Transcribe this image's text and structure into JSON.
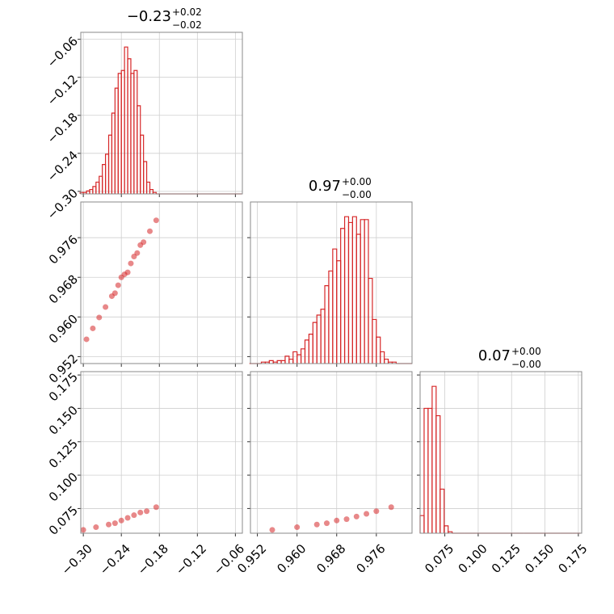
{
  "chart_data": {
    "type": "corner",
    "color": "#d62728",
    "grid": true,
    "hist_ylim": [
      0,
      110
    ],
    "parameters": [
      {
        "title": "−0.23",
        "title_upper": "+0.02",
        "title_lower": "−0.02",
        "lim": [
          -0.304,
          -0.049
        ],
        "ticks": [
          {
            "value": -0.3,
            "label": "−0.30"
          },
          {
            "value": -0.24,
            "label": "−0.24"
          },
          {
            "value": -0.18,
            "label": "−0.18"
          },
          {
            "value": -0.12,
            "label": "−0.12"
          },
          {
            "value": -0.06,
            "label": "−0.06"
          }
        ],
        "bins": [
          -0.305,
          -0.3,
          -0.295,
          -0.29,
          -0.285,
          -0.28,
          -0.275,
          -0.27,
          -0.265,
          -0.26,
          -0.255,
          -0.25,
          -0.245,
          -0.24,
          -0.235,
          -0.23,
          -0.225,
          -0.22,
          -0.215,
          -0.21,
          -0.205,
          -0.2,
          -0.195,
          -0.19,
          -0.185,
          -0.18,
          -0.175,
          -0.17,
          -0.165,
          -0.16,
          -0.155,
          -0.15,
          -0.145,
          -0.14,
          -0.135,
          -0.13,
          -0.125,
          -0.12,
          -0.115,
          -0.11,
          -0.105,
          -0.1,
          -0.095,
          -0.09,
          -0.085,
          -0.08,
          -0.075,
          -0.07,
          -0.065,
          -0.06,
          -0.055,
          -0.05
        ],
        "counts": [
          1,
          1,
          2,
          3,
          5,
          8,
          12,
          20,
          27,
          40,
          55,
          72,
          82,
          84,
          100,
          92,
          82,
          84,
          60,
          40,
          22,
          8,
          3,
          1,
          0,
          0,
          0,
          0,
          0,
          0,
          0,
          0,
          0,
          0,
          0,
          0,
          0,
          0,
          0,
          0,
          0,
          0,
          0,
          0,
          0,
          0,
          0,
          0,
          0,
          0,
          0
        ]
      },
      {
        "title": "0.97",
        "title_upper": "+0.00",
        "title_lower": "−0.00",
        "lim": [
          0.9506,
          0.9832
        ],
        "ticks": [
          0.952,
          {
            "value": 0.96,
            "label": "0.960"
          },
          0.968,
          0.976
        ],
        "bins": [
          0.9504,
          0.9512,
          0.952,
          0.9528,
          0.9536,
          0.9544,
          0.9552,
          0.956,
          0.9568,
          0.9576,
          0.9584,
          0.9592,
          0.96,
          0.9608,
          0.9616,
          0.9624,
          0.9632,
          0.964,
          0.9648,
          0.9656,
          0.9664,
          0.9672,
          0.968,
          0.9688,
          0.9696,
          0.9704,
          0.9712,
          0.972,
          0.9728,
          0.9736,
          0.9744,
          0.9752,
          0.976,
          0.9768,
          0.9776,
          0.9784,
          0.9792,
          0.98,
          0.9808,
          0.9816,
          0.9824,
          0.9832
        ],
        "counts": [
          0,
          0,
          0,
          1,
          1,
          2,
          1,
          2,
          2,
          5,
          3,
          8,
          6,
          10,
          16,
          20,
          28,
          33,
          37,
          53,
          63,
          78,
          70,
          92,
          100,
          96,
          100,
          88,
          98,
          98,
          58,
          30,
          18,
          8,
          3,
          1,
          1,
          0,
          0,
          0,
          0
        ]
      },
      {
        "title": "0.07",
        "title_upper": "+0.00",
        "title_lower": "−0.00",
        "lim": [
          0.0565,
          0.1775
        ],
        "ticks": [
          0.075,
          {
            "value": 0.1,
            "label": "0.100"
          },
          0.125,
          {
            "value": 0.15,
            "label": "0.150"
          },
          0.175
        ],
        "bins": [
          0.0565,
          0.0595,
          0.0625,
          0.0655,
          0.0685,
          0.0715,
          0.0745,
          0.0775,
          0.0805,
          0.0835,
          0.0865,
          0.0895,
          0.0925,
          0.0955,
          0.0985,
          0.1015,
          0.1045,
          0.1075,
          0.1105,
          0.1135,
          0.1165,
          0.1195,
          0.1225,
          0.1255,
          0.1285,
          0.1315,
          0.1345,
          0.1375,
          0.1405,
          0.1435,
          0.1465,
          0.1495,
          0.1525,
          0.1555,
          0.1585,
          0.1615,
          0.1645,
          0.1675,
          0.1705,
          0.1735,
          0.1765
        ],
        "counts": [
          12,
          85,
          85,
          100,
          80,
          30,
          5,
          1,
          0,
          0,
          0,
          0,
          0,
          0,
          0,
          0,
          0,
          0,
          0,
          0,
          0,
          0,
          0,
          0,
          0,
          0,
          0,
          0,
          0,
          0,
          0,
          0,
          0,
          0,
          0,
          0,
          0,
          0,
          0,
          0
        ]
      }
    ],
    "pairs": [
      {
        "x": [
          -0.295,
          -0.285,
          -0.275,
          -0.265,
          -0.255,
          -0.245,
          -0.235,
          -0.225,
          -0.215,
          -0.205,
          -0.195,
          -0.185,
          -0.24,
          -0.23,
          -0.22,
          -0.25,
          -0.21
        ],
        "y": [
          0.9555,
          0.9577,
          0.9599,
          0.962,
          0.9642,
          0.9664,
          0.9686,
          0.9708,
          0.9729,
          0.9751,
          0.9773,
          0.9795,
          0.968,
          0.969,
          0.9722,
          0.9648,
          0.9745
        ]
      },
      {
        "x": [
          -0.3,
          -0.28,
          -0.26,
          -0.24,
          -0.22,
          -0.2,
          -0.185,
          -0.25,
          -0.23,
          -0.21
        ],
        "y": [
          0.059,
          0.061,
          0.063,
          0.066,
          0.07,
          0.073,
          0.076,
          0.064,
          0.068,
          0.072
        ]
      },
      {
        "x": [
          0.955,
          0.96,
          0.964,
          0.968,
          0.97,
          0.972,
          0.974,
          0.976,
          0.979,
          0.966
        ],
        "y": [
          0.059,
          0.061,
          0.063,
          0.066,
          0.067,
          0.069,
          0.071,
          0.073,
          0.076,
          0.064
        ]
      }
    ]
  }
}
